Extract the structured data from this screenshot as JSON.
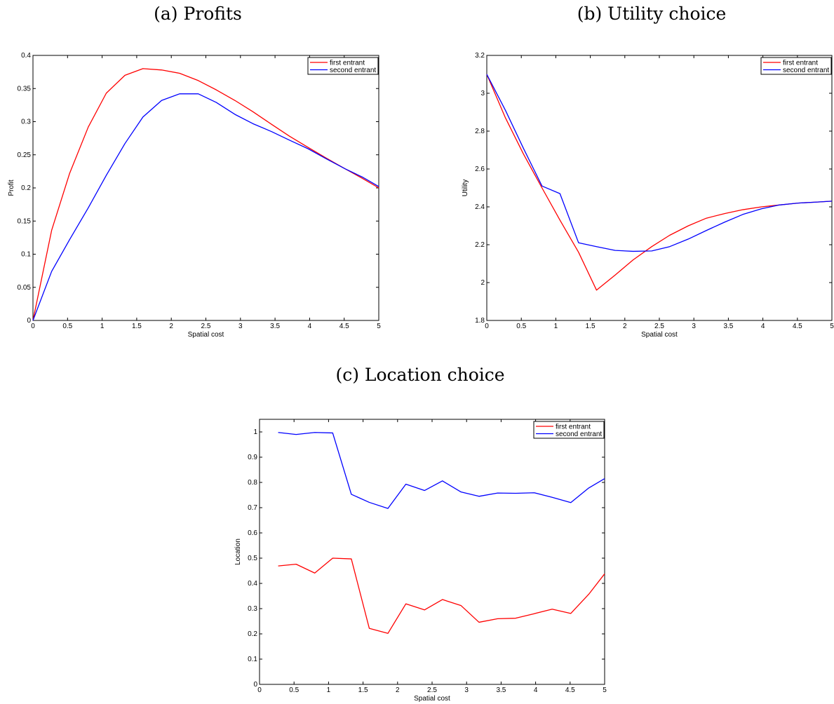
{
  "figure": {
    "captions": [
      "(a) Profits",
      "(b) Utility choice",
      "(c) Location choice"
    ]
  },
  "chart_data": [
    {
      "type": "line",
      "caption": "(a) Profits",
      "xlabel": "Spatial cost",
      "ylabel": "Profit",
      "xlim": [
        0,
        5
      ],
      "ylim": [
        0,
        0.4
      ],
      "xticks": [
        "0",
        "0.5",
        "1",
        "1.5",
        "2",
        "2.5",
        "3",
        "3.5",
        "4",
        "4.5",
        "5"
      ],
      "yticks": [
        "0",
        "0.05",
        "0.1",
        "0.15",
        "0.2",
        "0.25",
        "0.3",
        "0.35",
        "0.4"
      ],
      "grid": false,
      "legend_position": "top-right",
      "series": [
        {
          "name": "first entrant",
          "color": "#ff0000",
          "x": [
            0,
            0.27,
            0.53,
            0.8,
            1.06,
            1.33,
            1.59,
            1.86,
            2.12,
            2.39,
            2.65,
            2.92,
            3.18,
            3.45,
            3.71,
            3.98,
            4.24,
            4.51,
            4.77,
            5.0
          ],
          "y": [
            0,
            0.136,
            0.222,
            0.292,
            0.343,
            0.37,
            0.38,
            0.378,
            0.373,
            0.362,
            0.348,
            0.332,
            0.315,
            0.296,
            0.278,
            0.261,
            0.245,
            0.229,
            0.214,
            0.2
          ]
        },
        {
          "name": "second entrant",
          "color": "#0000ff",
          "x": [
            0,
            0.27,
            0.53,
            0.8,
            1.06,
            1.33,
            1.59,
            1.86,
            2.12,
            2.39,
            2.65,
            2.92,
            3.18,
            3.45,
            3.71,
            3.98,
            4.24,
            4.51,
            4.77,
            5.0
          ],
          "y": [
            0,
            0.074,
            0.122,
            0.17,
            0.219,
            0.267,
            0.307,
            0.332,
            0.342,
            0.342,
            0.329,
            0.311,
            0.297,
            0.285,
            0.272,
            0.259,
            0.244,
            0.229,
            0.216,
            0.202
          ]
        }
      ]
    },
    {
      "type": "line",
      "caption": "(b) Utility choice",
      "xlabel": "Spatial cost",
      "ylabel": "Utility",
      "xlim": [
        0,
        5
      ],
      "ylim": [
        1.8,
        3.2
      ],
      "xticks": [
        "0",
        "0.5",
        "1",
        "1.5",
        "2",
        "2.5",
        "3",
        "3.5",
        "4",
        "4.5",
        "5"
      ],
      "yticks": [
        "1.8",
        "2",
        "2.2",
        "2.4",
        "2.6",
        "2.8",
        "3",
        "3.2"
      ],
      "grid": false,
      "legend_position": "top-right",
      "series": [
        {
          "name": "first entrant",
          "color": "#ff0000",
          "x": [
            0,
            0.27,
            0.53,
            0.8,
            1.06,
            1.33,
            1.59,
            1.86,
            2.12,
            2.39,
            2.65,
            2.92,
            3.18,
            3.45,
            3.71,
            3.98,
            4.24,
            4.51,
            4.77,
            5.0
          ],
          "y": [
            3.1,
            2.87,
            2.68,
            2.5,
            2.33,
            2.16,
            1.96,
            2.04,
            2.12,
            2.19,
            2.25,
            2.3,
            2.34,
            2.365,
            2.385,
            2.4,
            2.41,
            2.42,
            2.425,
            2.43
          ]
        },
        {
          "name": "second entrant",
          "color": "#0000ff",
          "x": [
            0,
            0.27,
            0.53,
            0.8,
            1.06,
            1.33,
            1.59,
            1.86,
            2.12,
            2.39,
            2.65,
            2.92,
            3.18,
            3.45,
            3.71,
            3.98,
            4.24,
            4.51,
            4.77,
            5.0
          ],
          "y": [
            3.1,
            2.91,
            2.71,
            2.51,
            2.47,
            2.21,
            2.19,
            2.17,
            2.165,
            2.167,
            2.19,
            2.23,
            2.275,
            2.32,
            2.36,
            2.39,
            2.41,
            2.42,
            2.425,
            2.43
          ]
        }
      ]
    },
    {
      "type": "line",
      "caption": "(c) Location choice",
      "xlabel": "Spatial cost",
      "ylabel": "Location",
      "xlim": [
        0,
        5
      ],
      "ylim": [
        0,
        1.05
      ],
      "xticks": [
        "0",
        "0.5",
        "1",
        "1.5",
        "2",
        "2.5",
        "3",
        "3.5",
        "4",
        "4.5",
        "5"
      ],
      "yticks": [
        "0",
        "0.1",
        "0.2",
        "0.3",
        "0.4",
        "0.5",
        "0.6",
        "0.7",
        "0.8",
        "0.9",
        "1"
      ],
      "grid": false,
      "legend_position": "top-right",
      "series": [
        {
          "name": "first entrant",
          "color": "#ff0000",
          "x": [
            0.27,
            0.53,
            0.8,
            1.06,
            1.33,
            1.59,
            1.86,
            2.12,
            2.39,
            2.65,
            2.92,
            3.18,
            3.45,
            3.71,
            3.98,
            4.24,
            4.51,
            4.77,
            5.0
          ],
          "y": [
            0.469,
            0.476,
            0.441,
            0.5,
            0.497,
            0.222,
            0.202,
            0.319,
            0.295,
            0.336,
            0.312,
            0.246,
            0.26,
            0.262,
            0.28,
            0.298,
            0.281,
            0.357,
            0.438
          ]
        },
        {
          "name": "second entrant",
          "color": "#0000ff",
          "x": [
            0.27,
            0.53,
            0.8,
            1.06,
            1.33,
            1.59,
            1.86,
            2.12,
            2.39,
            2.65,
            2.92,
            3.18,
            3.45,
            3.71,
            3.98,
            4.24,
            4.51,
            4.77,
            5.0
          ],
          "y": [
            0.998,
            0.99,
            0.998,
            0.996,
            0.753,
            0.721,
            0.697,
            0.793,
            0.768,
            0.806,
            0.762,
            0.745,
            0.758,
            0.757,
            0.759,
            0.741,
            0.72,
            0.778,
            0.815
          ]
        }
      ]
    }
  ]
}
